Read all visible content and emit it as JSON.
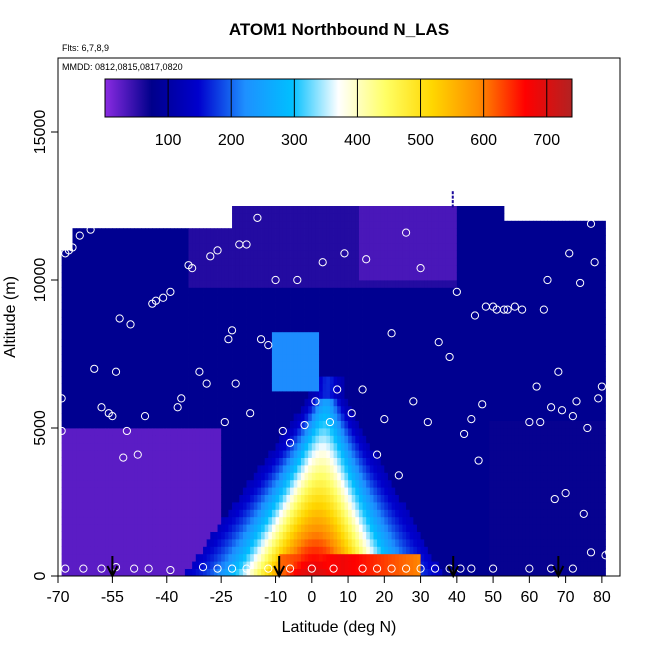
{
  "chart_data": {
    "type": "heatmap",
    "title": "ATOM1 Northbound N_LAS",
    "annotations": [
      "Flts: 6,7,8,9",
      "MMDD: 0812,0815,0817,0820"
    ],
    "xlabel": "Latitude (deg N)",
    "ylabel": "Altitude (m)",
    "xlim": [
      -70,
      85
    ],
    "ylim": [
      0,
      17500
    ],
    "x_ticks": [
      -70,
      -55,
      -40,
      -25,
      -10,
      0,
      10,
      20,
      30,
      40,
      50,
      60,
      70,
      80
    ],
    "y_ticks": [
      0,
      5000,
      10000,
      15000
    ],
    "colorbar": {
      "range": [
        0,
        740
      ],
      "ticks": [
        100,
        200,
        300,
        400,
        500,
        600,
        700
      ],
      "colors": [
        "#8a2be2",
        "#00008b",
        "#0000cd",
        "#1e90ff",
        "#00bfff",
        "#ffffff",
        "#ffff66",
        "#ffd700",
        "#ff8c00",
        "#ff0000",
        "#b22222"
      ]
    },
    "plume": {
      "peak_lat": 0,
      "value_at_surface": 700,
      "top_altitude": 6000
    },
    "flight_points": [
      [
        -69,
        6000
      ],
      [
        -69,
        4900
      ],
      [
        -68,
        10900
      ],
      [
        -67,
        11000
      ],
      [
        -66,
        11100
      ],
      [
        -64,
        11500
      ],
      [
        -61,
        11700
      ],
      [
        -60,
        7000
      ],
      [
        -58,
        5700
      ],
      [
        -56,
        5500
      ],
      [
        -55,
        5400
      ],
      [
        -54,
        6900
      ],
      [
        -53,
        8700
      ],
      [
        -52,
        4000
      ],
      [
        -51,
        4900
      ],
      [
        -50,
        8500
      ],
      [
        -48,
        4100
      ],
      [
        -46,
        5400
      ],
      [
        -44,
        9200
      ],
      [
        -43,
        9300
      ],
      [
        -41,
        9400
      ],
      [
        -39,
        9600
      ],
      [
        -37,
        5700
      ],
      [
        -36,
        6000
      ],
      [
        -34,
        10500
      ],
      [
        -33,
        10400
      ],
      [
        -31,
        6900
      ],
      [
        -29,
        6500
      ],
      [
        -28,
        10800
      ],
      [
        -26,
        11000
      ],
      [
        -24,
        5200
      ],
      [
        -23,
        8000
      ],
      [
        -22,
        8300
      ],
      [
        -21,
        6500
      ],
      [
        -20,
        11200
      ],
      [
        -18,
        11200
      ],
      [
        -17,
        5500
      ],
      [
        -15,
        12100
      ],
      [
        -14,
        8000
      ],
      [
        -12,
        7800
      ],
      [
        -10,
        10000
      ],
      [
        -8,
        4900
      ],
      [
        -6,
        4500
      ],
      [
        -4,
        10000
      ],
      [
        -2,
        5100
      ],
      [
        1,
        5900
      ],
      [
        3,
        10600
      ],
      [
        5,
        5200
      ],
      [
        7,
        6300
      ],
      [
        9,
        10900
      ],
      [
        11,
        5500
      ],
      [
        14,
        6300
      ],
      [
        15,
        10700
      ],
      [
        18,
        4100
      ],
      [
        20,
        5300
      ],
      [
        22,
        8200
      ],
      [
        24,
        3400
      ],
      [
        26,
        11600
      ],
      [
        28,
        5900
      ],
      [
        30,
        10400
      ],
      [
        32,
        5200
      ],
      [
        35,
        7900
      ],
      [
        38,
        7400
      ],
      [
        40,
        9600
      ],
      [
        42,
        4800
      ],
      [
        44,
        5300
      ],
      [
        45,
        8800
      ],
      [
        46,
        3900
      ],
      [
        47,
        5800
      ],
      [
        48,
        9100
      ],
      [
        50,
        9100
      ],
      [
        51,
        9000
      ],
      [
        53,
        9000
      ],
      [
        54,
        9000
      ],
      [
        56,
        9100
      ],
      [
        58,
        9000
      ],
      [
        60,
        5200
      ],
      [
        62,
        6400
      ],
      [
        63,
        5200
      ],
      [
        64,
        9000
      ],
      [
        65,
        10000
      ],
      [
        66,
        5700
      ],
      [
        67,
        2600
      ],
      [
        68,
        6900
      ],
      [
        69,
        5600
      ],
      [
        70,
        2800
      ],
      [
        71,
        10900
      ],
      [
        72,
        5400
      ],
      [
        73,
        5900
      ],
      [
        74,
        9900
      ],
      [
        75,
        2100
      ],
      [
        76,
        5000
      ],
      [
        77,
        11900
      ],
      [
        78,
        10600
      ],
      [
        79,
        6000
      ],
      [
        80,
        6400
      ],
      [
        81,
        700
      ],
      [
        82,
        800
      ],
      [
        -68,
        250
      ],
      [
        -63,
        250
      ],
      [
        -58,
        250
      ],
      [
        -54,
        300
      ],
      [
        -49,
        250
      ],
      [
        -45,
        250
      ],
      [
        -39,
        200
      ],
      [
        -30,
        300
      ],
      [
        -26,
        250
      ],
      [
        -22,
        250
      ],
      [
        -18,
        250
      ],
      [
        -12,
        250
      ],
      [
        -6,
        250
      ],
      [
        0,
        250
      ],
      [
        6,
        250
      ],
      [
        14,
        250
      ],
      [
        18,
        250
      ],
      [
        22,
        250
      ],
      [
        26,
        250
      ],
      [
        30,
        250
      ],
      [
        34,
        250
      ],
      [
        38,
        250
      ],
      [
        41,
        250
      ],
      [
        44,
        250
      ],
      [
        50,
        250
      ],
      [
        60,
        250
      ],
      [
        66,
        250
      ],
      [
        72,
        250
      ],
      [
        77,
        800
      ]
    ],
    "profile_arrows_lat": [
      -55,
      -9,
      39,
      68
    ]
  }
}
